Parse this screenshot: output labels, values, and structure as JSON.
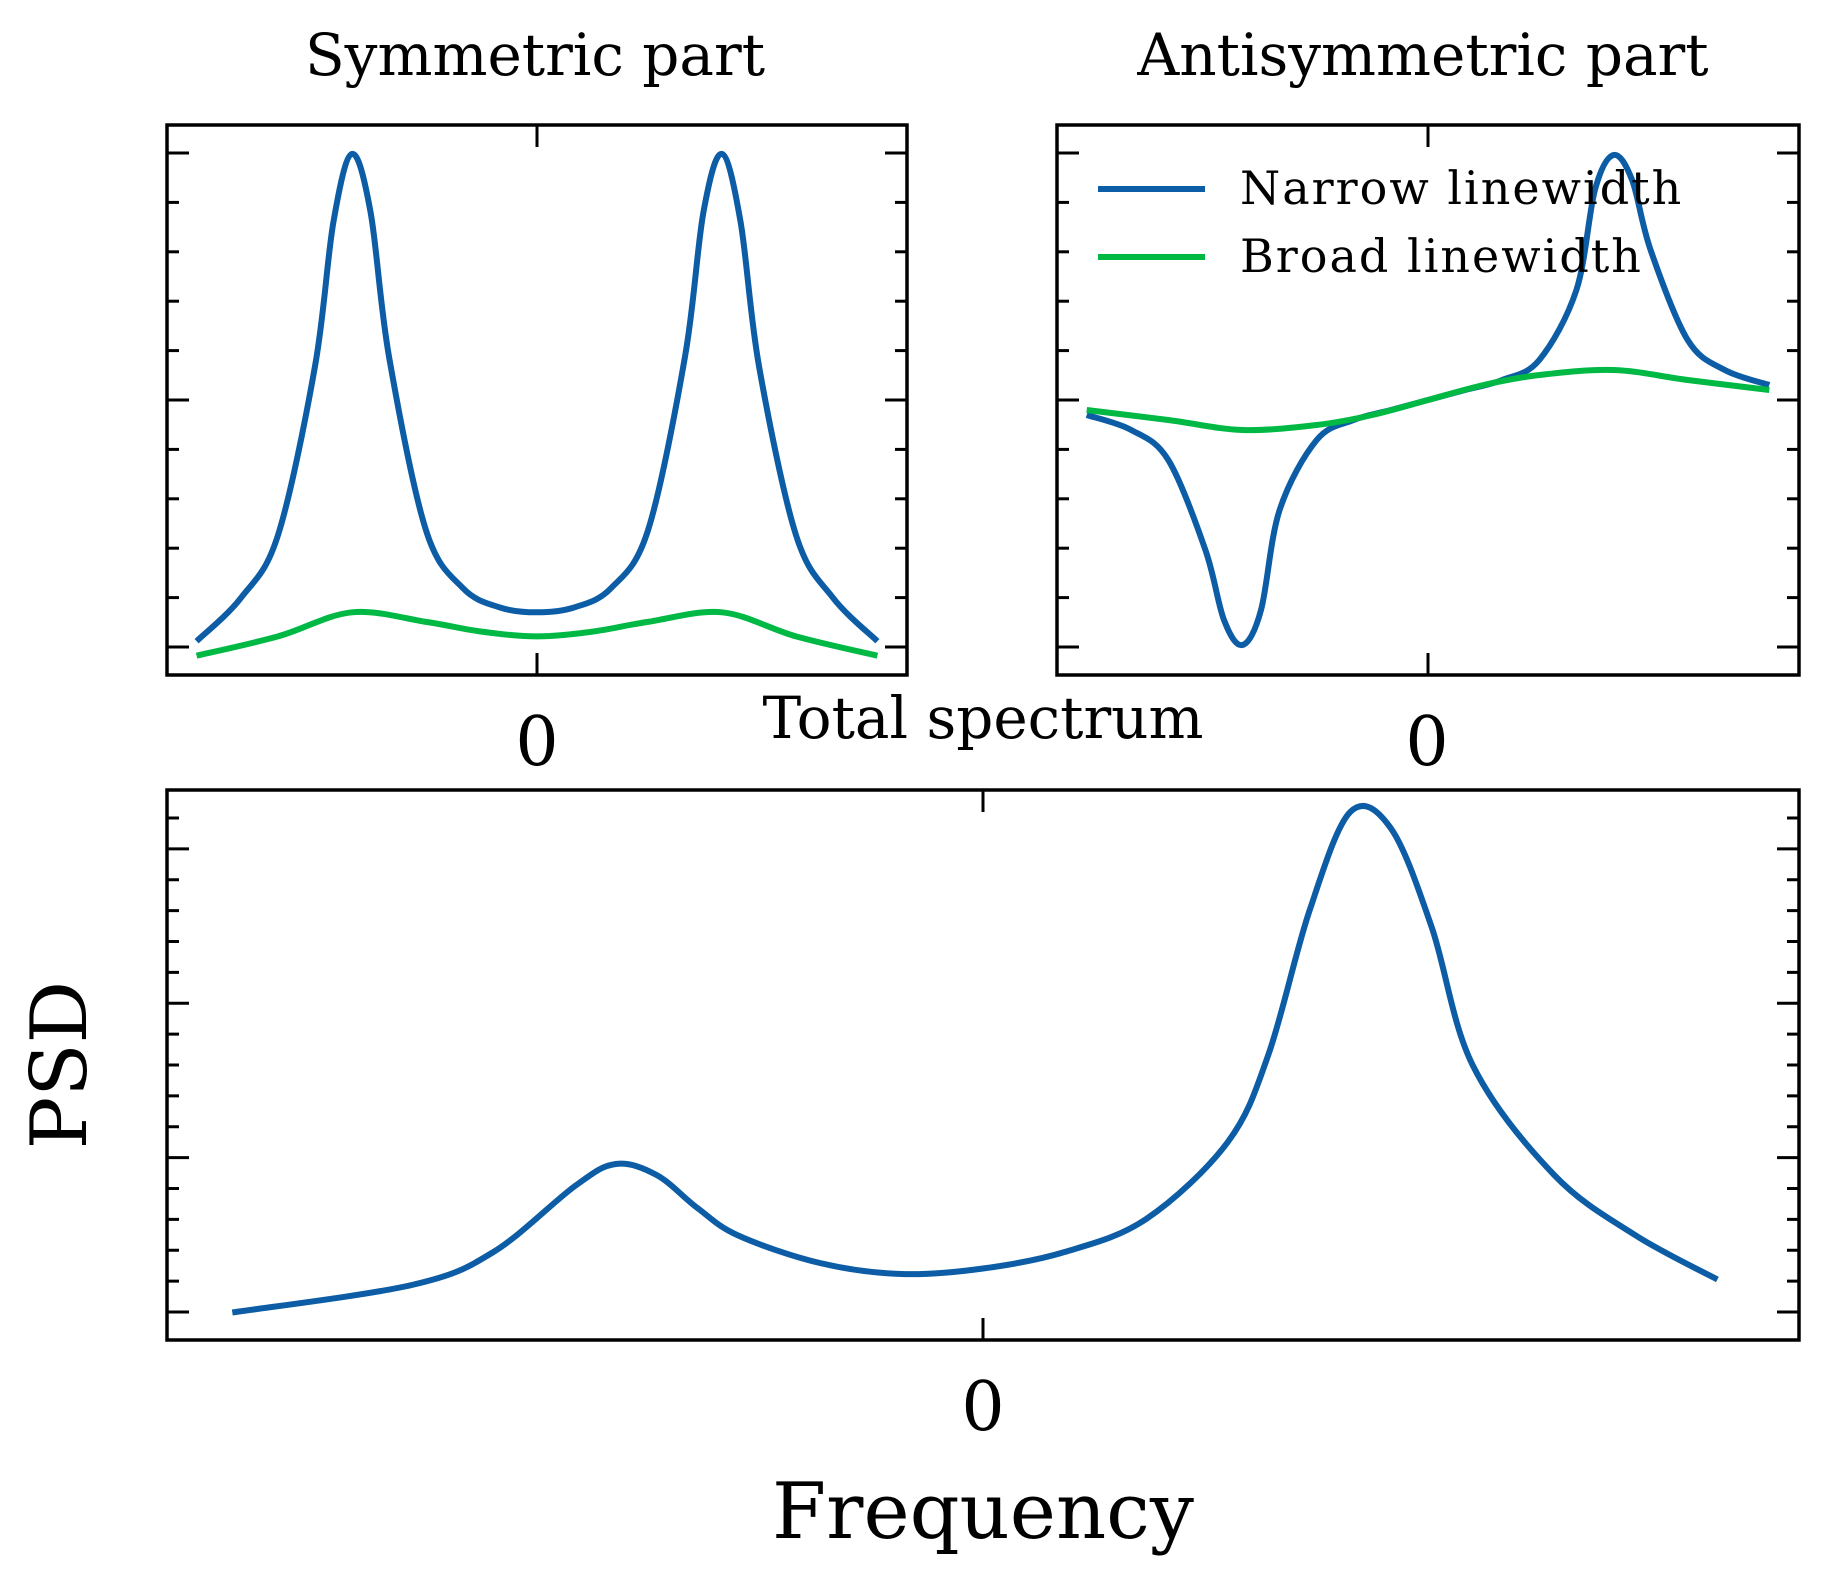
{
  "figure": {
    "ylabel": "PSD",
    "xlabel": "Frequency"
  },
  "colors": {
    "narrow": "#0c5da5",
    "broad": "#00b945"
  },
  "chart_data": [
    {
      "id": "symmetric",
      "type": "line",
      "title": "Symmetric part",
      "x_tick_labels": [
        "0"
      ],
      "x_tick_values": [
        0
      ],
      "xlim": [
        -1.0,
        1.0
      ],
      "ylim": [
        -0.14,
        1.0
      ],
      "y_tick_labels": [],
      "legend": "none",
      "series": [
        {
          "name": "Narrow linewidth",
          "color": "narrow",
          "x": [
            -0.92,
            -0.8,
            -0.7,
            -0.6,
            -0.55,
            -0.5,
            -0.45,
            -0.4,
            -0.3,
            -0.2,
            -0.1,
            0,
            0.1,
            0.2,
            0.3,
            0.4,
            0.45,
            0.5,
            0.55,
            0.6,
            0.7,
            0.8,
            0.92
          ],
          "y": [
            -0.07,
            0.02,
            0.15,
            0.5,
            0.8,
            0.94,
            0.82,
            0.52,
            0.16,
            0.04,
            0.0,
            -0.01,
            0.0,
            0.04,
            0.16,
            0.52,
            0.82,
            0.94,
            0.8,
            0.5,
            0.15,
            0.02,
            -0.07
          ]
        },
        {
          "name": "Broad linewidth",
          "color": "broad",
          "x": [
            -0.92,
            -0.7,
            -0.5,
            -0.3,
            -0.15,
            0,
            0.15,
            0.3,
            0.5,
            0.7,
            0.92
          ],
          "y": [
            -0.1,
            -0.06,
            -0.01,
            -0.03,
            -0.05,
            -0.06,
            -0.05,
            -0.03,
            -0.01,
            -0.06,
            -0.1
          ]
        }
      ]
    },
    {
      "id": "antisymmetric",
      "type": "line",
      "title": "Antisymmetric part",
      "x_tick_labels": [
        "0"
      ],
      "x_tick_values": [
        0
      ],
      "xlim": [
        -1.0,
        1.0
      ],
      "ylim": [
        -0.55,
        0.55
      ],
      "y_tick_labels": [],
      "legend": "upper-left",
      "series": [
        {
          "name": "Narrow linewidth",
          "color": "narrow",
          "x": [
            -0.92,
            -0.8,
            -0.7,
            -0.6,
            -0.55,
            -0.5,
            -0.45,
            -0.4,
            -0.3,
            -0.2,
            -0.1,
            0,
            0.1,
            0.2,
            0.3,
            0.4,
            0.45,
            0.5,
            0.55,
            0.6,
            0.7,
            0.8,
            0.92
          ],
          "y": [
            -0.03,
            -0.06,
            -0.12,
            -0.3,
            -0.44,
            -0.49,
            -0.42,
            -0.22,
            -0.08,
            -0.04,
            -0.02,
            0.0,
            0.02,
            0.04,
            0.08,
            0.22,
            0.42,
            0.49,
            0.44,
            0.3,
            0.12,
            0.06,
            0.03
          ]
        },
        {
          "name": "Broad linewidth",
          "color": "broad",
          "x": [
            -0.92,
            -0.7,
            -0.5,
            -0.3,
            -0.15,
            0,
            0.15,
            0.3,
            0.5,
            0.7,
            0.92
          ],
          "y": [
            -0.02,
            -0.04,
            -0.06,
            -0.05,
            -0.03,
            0.0,
            0.03,
            0.05,
            0.06,
            0.04,
            0.02
          ]
        }
      ]
    },
    {
      "id": "total",
      "type": "line",
      "title": "Total spectrum",
      "x_tick_labels": [
        "0"
      ],
      "x_tick_values": [
        0
      ],
      "xlim": [
        -1.0,
        1.0
      ],
      "ylim": [
        0,
        1.0
      ],
      "y_tick_labels": [],
      "legend": "none",
      "series": [
        {
          "name": "Narrow linewidth",
          "color": "narrow",
          "x": [
            -0.92,
            -0.7,
            -0.6,
            -0.5,
            -0.45,
            -0.4,
            -0.35,
            -0.3,
            -0.2,
            -0.1,
            0.0,
            0.1,
            0.2,
            0.3,
            0.35,
            0.4,
            0.45,
            0.5,
            0.55,
            0.6,
            0.7,
            0.8,
            0.9
          ],
          "y": [
            0.05,
            0.1,
            0.16,
            0.28,
            0.32,
            0.3,
            0.24,
            0.19,
            0.14,
            0.12,
            0.13,
            0.16,
            0.22,
            0.36,
            0.52,
            0.78,
            0.96,
            0.93,
            0.75,
            0.5,
            0.3,
            0.19,
            0.11
          ]
        }
      ]
    }
  ]
}
